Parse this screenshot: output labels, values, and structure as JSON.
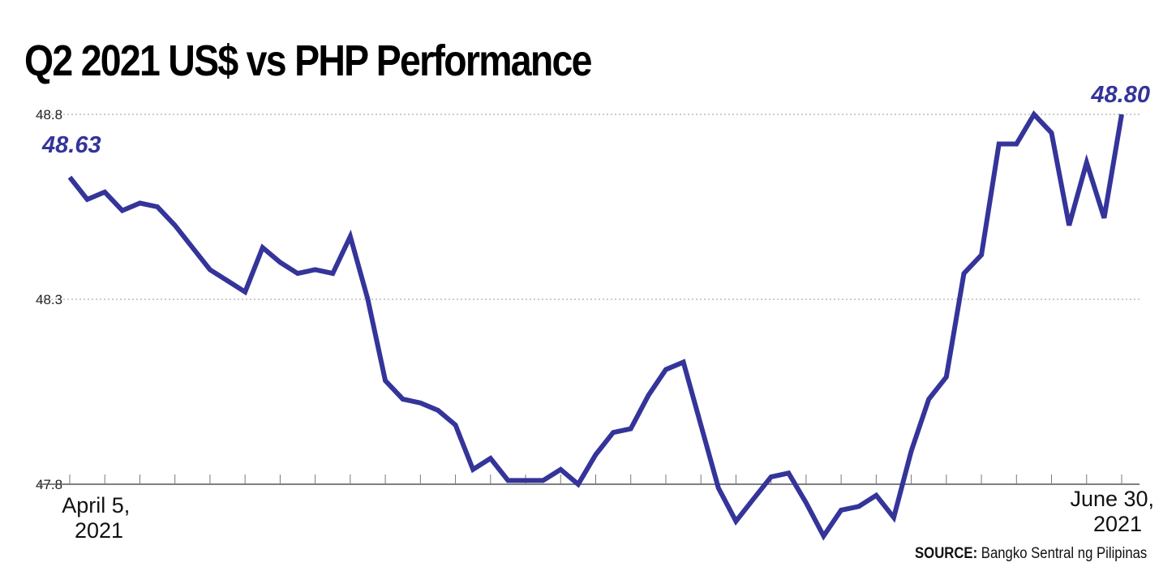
{
  "title": "Q2 2021 US$ vs PHP Performance",
  "source": {
    "label": "SOURCE:",
    "text": "Bangko Sentral ng Pilipinas"
  },
  "colors": {
    "line": "#34349a",
    "grid": "#9a9a9a",
    "text": "#000000"
  },
  "chart_data": {
    "type": "line",
    "title": "Q2 2021 US$ vs PHP Performance",
    "xlabel": "",
    "ylabel": "",
    "x_start_label": [
      "April 5,",
      "2021"
    ],
    "x_end_label": [
      "June 30,",
      "2021"
    ],
    "yticks": [
      47.8,
      48.3,
      48.8
    ],
    "ytick_labels": [
      "47.8",
      "48.3",
      "48.8"
    ],
    "ylim": [
      47.8,
      48.8
    ],
    "grid": "horizontal-dotted",
    "legend": "none",
    "series": [
      {
        "values": [
          48.63,
          48.57,
          48.59,
          48.54,
          48.56,
          48.55,
          48.5,
          48.44,
          48.38,
          48.35,
          48.32,
          48.44,
          48.4,
          48.37,
          48.38,
          48.37,
          48.47,
          48.3,
          48.08,
          48.03,
          48.02,
          48.0,
          47.96,
          47.84,
          47.87,
          47.81,
          47.81,
          47.81,
          47.84,
          47.8,
          47.88,
          47.94,
          47.95,
          48.04,
          48.11,
          48.13,
          47.96,
          47.79,
          47.7,
          47.76,
          47.82,
          47.83,
          47.75,
          47.66,
          47.73,
          47.74,
          47.77,
          47.71,
          47.89,
          48.03,
          48.09,
          48.37,
          48.42,
          48.72,
          48.72,
          48.8,
          48.75,
          48.5,
          48.67,
          48.52,
          48.8
        ]
      }
    ],
    "annotations": [
      {
        "text": "48.63",
        "at": "first"
      },
      {
        "text": "48.80",
        "at": "last"
      }
    ]
  }
}
